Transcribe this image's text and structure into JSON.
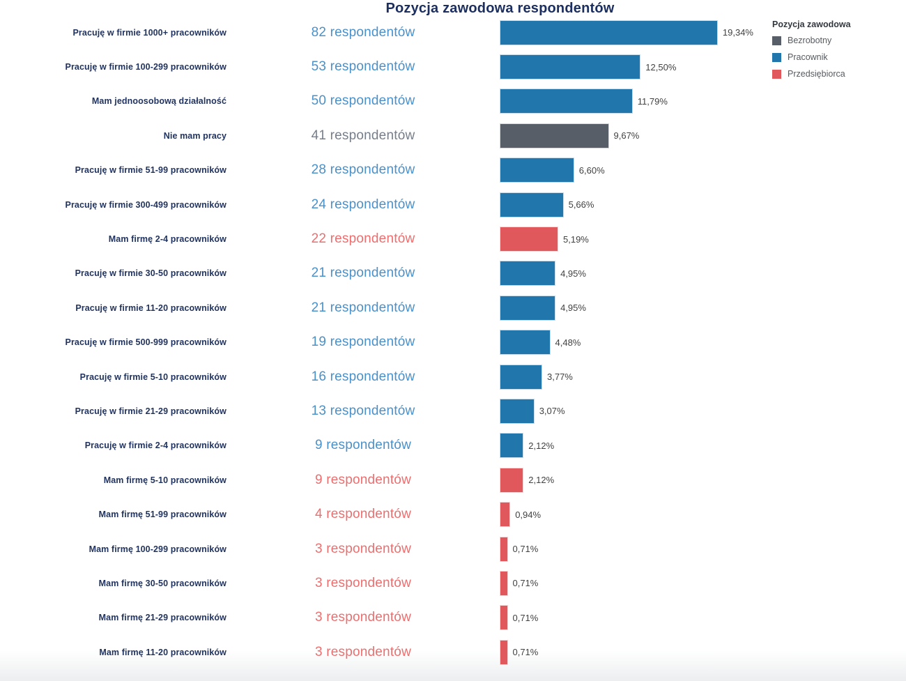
{
  "title": "Pozycja zawodowa respondentów",
  "legend": {
    "title": "Pozycja zawodowa",
    "items": [
      {
        "label": "Bezrobotny",
        "color": "#575e68"
      },
      {
        "label": "Pracownik",
        "color": "#2176ac"
      },
      {
        "label": "Przedsiębiorca",
        "color": "#e0585b"
      }
    ]
  },
  "category_colors": {
    "Bezrobotny": {
      "bar": "#575e68",
      "text": "#767e89"
    },
    "Pracownik": {
      "bar": "#2176ac",
      "text": "#4a90c9"
    },
    "Przedsiębiorca": {
      "bar": "#e0585b",
      "text": "#ed6e6e"
    }
  },
  "chart_data": {
    "type": "bar",
    "orientation": "horizontal",
    "title": "Pozycja zawodowa respondentów",
    "xlabel": "",
    "ylabel": "",
    "x_unit": "percent",
    "xlim": [
      0,
      20
    ],
    "grid": false,
    "legend_position": "top-right",
    "legend_title": "Pozycja zawodowa",
    "categories": [
      "Pracuję w firmie 1000+ pracowników",
      "Pracuję w firmie 100-299 pracowników",
      "Mam jednoosobową działalność",
      "Nie mam pracy",
      "Pracuję w firmie 51-99 pracowników",
      "Pracuję w firmie 300-499 pracowników",
      "Mam firmę 2-4 pracowników",
      "Pracuję w firmie 30-50 pracowników",
      "Pracuję w firmie 11-20 pracowników",
      "Pracuję w firmie 500-999 pracowników",
      "Pracuję w firmie 5-10 pracowników",
      "Pracuję w firmie 21-29 pracowników",
      "Pracuję w firmie 2-4 pracowników",
      "Mam firmę 5-10 pracowników",
      "Mam firmę 51-99 pracowników",
      "Mam firmę 100-299 pracowników",
      "Mam firmę 30-50 pracowników",
      "Mam firmę 21-29 pracowników",
      "Mam firmę 11-20 pracowników"
    ],
    "series": [
      {
        "name": "respondents",
        "values": [
          82,
          53,
          50,
          41,
          28,
          24,
          22,
          21,
          21,
          19,
          16,
          13,
          9,
          9,
          4,
          3,
          3,
          3,
          3
        ]
      },
      {
        "name": "percent",
        "values": [
          19.34,
          12.5,
          11.79,
          9.67,
          6.6,
          5.66,
          5.19,
          4.95,
          4.95,
          4.48,
          3.77,
          3.07,
          2.12,
          2.12,
          0.94,
          0.71,
          0.71,
          0.71,
          0.71
        ]
      }
    ],
    "rows": [
      {
        "label": "Pracuję w firmie 1000+ pracowników",
        "count": 82,
        "count_label": "82 respondentów",
        "pct": 19.34,
        "pct_label": "19,34%",
        "category": "Pracownik"
      },
      {
        "label": "Pracuję w firmie 100-299 pracowników",
        "count": 53,
        "count_label": "53 respondentów",
        "pct": 12.5,
        "pct_label": "12,50%",
        "category": "Pracownik"
      },
      {
        "label": "Mam jednoosobową działalność",
        "count": 50,
        "count_label": "50 respondentów",
        "pct": 11.79,
        "pct_label": "11,79%",
        "category": "Pracownik"
      },
      {
        "label": "Nie mam pracy",
        "count": 41,
        "count_label": "41 respondentów",
        "pct": 9.67,
        "pct_label": "9,67%",
        "category": "Bezrobotny"
      },
      {
        "label": "Pracuję w firmie 51-99 pracowników",
        "count": 28,
        "count_label": "28 respondentów",
        "pct": 6.6,
        "pct_label": "6,60%",
        "category": "Pracownik"
      },
      {
        "label": "Pracuję w firmie 300-499 pracowników",
        "count": 24,
        "count_label": "24 respondentów",
        "pct": 5.66,
        "pct_label": "5,66%",
        "category": "Pracownik"
      },
      {
        "label": "Mam firmę 2-4 pracowników",
        "count": 22,
        "count_label": "22 respondentów",
        "pct": 5.19,
        "pct_label": "5,19%",
        "category": "Przedsiębiorca"
      },
      {
        "label": "Pracuję w firmie 30-50 pracowników",
        "count": 21,
        "count_label": "21 respondentów",
        "pct": 4.95,
        "pct_label": "4,95%",
        "category": "Pracownik"
      },
      {
        "label": "Pracuję w firmie 11-20 pracowników",
        "count": 21,
        "count_label": "21 respondentów",
        "pct": 4.95,
        "pct_label": "4,95%",
        "category": "Pracownik"
      },
      {
        "label": "Pracuję w firmie 500-999 pracowników",
        "count": 19,
        "count_label": "19 respondentów",
        "pct": 4.48,
        "pct_label": "4,48%",
        "category": "Pracownik"
      },
      {
        "label": "Pracuję w firmie 5-10 pracowników",
        "count": 16,
        "count_label": "16 respondentów",
        "pct": 3.77,
        "pct_label": "3,77%",
        "category": "Pracownik"
      },
      {
        "label": "Pracuję w firmie 21-29 pracowników",
        "count": 13,
        "count_label": "13 respondentów",
        "pct": 3.07,
        "pct_label": "3,07%",
        "category": "Pracownik"
      },
      {
        "label": "Pracuję w firmie 2-4 pracowników",
        "count": 9,
        "count_label": "9 respondentów",
        "pct": 2.12,
        "pct_label": "2,12%",
        "category": "Pracownik"
      },
      {
        "label": "Mam firmę 5-10 pracowników",
        "count": 9,
        "count_label": "9 respondentów",
        "pct": 2.12,
        "pct_label": "2,12%",
        "category": "Przedsiębiorca"
      },
      {
        "label": "Mam firmę 51-99 pracowników",
        "count": 4,
        "count_label": "4 respondentów",
        "pct": 0.94,
        "pct_label": "0,94%",
        "category": "Przedsiębiorca"
      },
      {
        "label": "Mam firmę 100-299 pracowników",
        "count": 3,
        "count_label": "3 respondentów",
        "pct": 0.71,
        "pct_label": "0,71%",
        "category": "Przedsiębiorca"
      },
      {
        "label": "Mam firmę 30-50 pracowników",
        "count": 3,
        "count_label": "3 respondentów",
        "pct": 0.71,
        "pct_label": "0,71%",
        "category": "Przedsiębiorca"
      },
      {
        "label": "Mam firmę 21-29 pracowników",
        "count": 3,
        "count_label": "3 respondentów",
        "pct": 0.71,
        "pct_label": "0,71%",
        "category": "Przedsiębiorca"
      },
      {
        "label": "Mam firmę 11-20 pracowników",
        "count": 3,
        "count_label": "3 respondentów",
        "pct": 0.71,
        "pct_label": "0,71%",
        "category": "Przedsiębiorca"
      }
    ]
  }
}
